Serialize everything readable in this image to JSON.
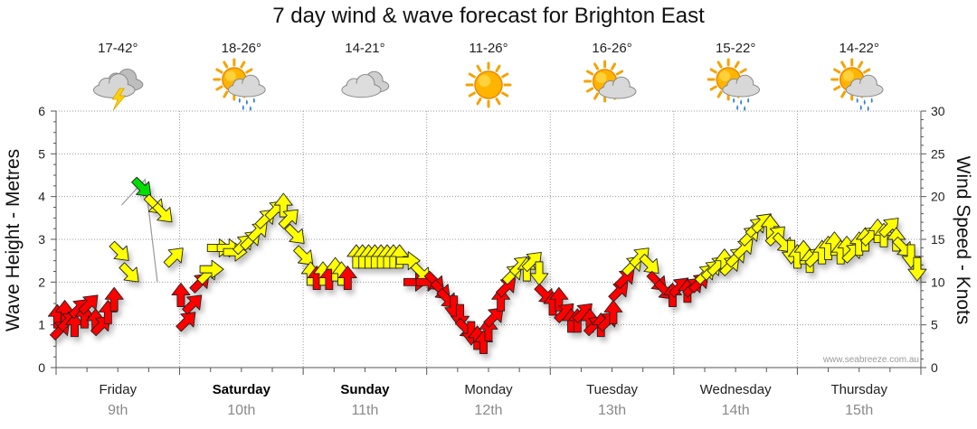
{
  "title": "7 day wind & wave forecast for Brighton East",
  "watermark": "www.seabreeze.com.au",
  "colors": {
    "light": "#ff0000",
    "moderate": "#ffff00",
    "strong": "#00dd00",
    "waveLine": "#999999"
  },
  "chart_data": {
    "type": "line",
    "title": "7 day wind & wave forecast for Brighton East",
    "ylabel_left": "Wave Height - Metres",
    "ylabel_right": "Wind Speed - Knots",
    "ylim_left": [
      0,
      6
    ],
    "ylim_right": [
      0,
      30
    ],
    "yticks_left": [
      "0",
      "1",
      "2",
      "3",
      "4",
      "5",
      "6"
    ],
    "yticks_right": [
      "0",
      "5",
      "10",
      "15",
      "20",
      "25",
      "30"
    ],
    "grid": true,
    "days": [
      {
        "name": "Friday",
        "num": "9th",
        "bold": false,
        "temp": "17-42°",
        "icon": "storm-icon"
      },
      {
        "name": "Saturday",
        "num": "10th",
        "bold": true,
        "temp": "18-26°",
        "icon": "sun-cloud-rain-icon"
      },
      {
        "name": "Sunday",
        "num": "11th",
        "bold": true,
        "temp": "14-21°",
        "icon": "cloud-icon"
      },
      {
        "name": "Monday",
        "num": "12th",
        "bold": false,
        "temp": "11-26°",
        "icon": "sun-icon"
      },
      {
        "name": "Tuesday",
        "num": "13th",
        "bold": false,
        "temp": "16-26°",
        "icon": "sun-cloud-icon"
      },
      {
        "name": "Wednesday",
        "num": "14th",
        "bold": false,
        "temp": "15-22°",
        "icon": "sun-cloud-rain-icon"
      },
      {
        "name": "Thursday",
        "num": "15th",
        "bold": false,
        "temp": "14-22°",
        "icon": "sun-cloud-rain-icon"
      }
    ],
    "wave_series": {
      "name": "Wave Height",
      "x_day": [
        0.53,
        0.72,
        0.82
      ],
      "y": [
        3.8,
        4.4,
        2.0
      ]
    },
    "wind_series": {
      "name": "Wind Speed",
      "points": [
        [
          0.01,
          6.0,
          "N"
        ],
        [
          0.04,
          4.5,
          "NE"
        ],
        [
          0.07,
          6.5,
          "N"
        ],
        [
          0.1,
          5.5,
          "NE"
        ],
        [
          0.15,
          5.0,
          "N"
        ],
        [
          0.19,
          7.0,
          "NE"
        ],
        [
          0.23,
          6.0,
          "N"
        ],
        [
          0.27,
          7.5,
          "NE"
        ],
        [
          0.32,
          5.5,
          "N"
        ],
        [
          0.37,
          5.0,
          "NE"
        ],
        [
          0.42,
          6.5,
          "N"
        ],
        [
          0.47,
          8.0,
          "N"
        ],
        [
          0.52,
          13.5,
          "SE"
        ],
        [
          0.6,
          11.0,
          "SE"
        ],
        [
          0.7,
          21.0,
          "SE"
        ],
        [
          0.8,
          19.0,
          "SE"
        ],
        [
          0.87,
          18.0,
          "SE"
        ],
        [
          0.96,
          13.0,
          "NE"
        ],
        [
          1.01,
          8.5,
          "N"
        ],
        [
          1.06,
          5.5,
          "NE"
        ],
        [
          1.11,
          7.5,
          "NE"
        ],
        [
          1.17,
          10.0,
          "NE"
        ],
        [
          1.23,
          11.0,
          "NE"
        ],
        [
          1.26,
          11.5,
          "E"
        ],
        [
          1.32,
          14.0,
          "E"
        ],
        [
          1.4,
          14.0,
          "E"
        ],
        [
          1.45,
          13.5,
          "E"
        ],
        [
          1.52,
          14.5,
          "NE"
        ],
        [
          1.58,
          15.0,
          "NE"
        ],
        [
          1.64,
          16.0,
          "NE"
        ],
        [
          1.7,
          17.5,
          "NE"
        ],
        [
          1.78,
          18.5,
          "NE"
        ],
        [
          1.84,
          19.0,
          "N"
        ],
        [
          1.89,
          17.5,
          "NE"
        ],
        [
          1.94,
          15.5,
          "SE"
        ],
        [
          2.01,
          13.0,
          "SE"
        ],
        [
          2.06,
          11.0,
          "N"
        ],
        [
          2.11,
          10.5,
          "N"
        ],
        [
          2.16,
          11.0,
          "N"
        ],
        [
          2.21,
          10.5,
          "N"
        ],
        [
          2.26,
          11.5,
          "N"
        ],
        [
          2.31,
          11.0,
          "N"
        ],
        [
          2.36,
          10.5,
          "N"
        ],
        [
          2.43,
          13.0,
          "N"
        ],
        [
          2.48,
          13.0,
          "N"
        ],
        [
          2.53,
          13.0,
          "N"
        ],
        [
          2.58,
          13.0,
          "N"
        ],
        [
          2.63,
          13.0,
          "N"
        ],
        [
          2.68,
          13.0,
          "N"
        ],
        [
          2.73,
          13.0,
          "N"
        ],
        [
          2.78,
          13.0,
          "N"
        ],
        [
          2.85,
          12.5,
          "E"
        ],
        [
          2.91,
          10.0,
          "E"
        ],
        [
          2.96,
          11.0,
          "SE"
        ],
        [
          3.01,
          10.0,
          "E"
        ],
        [
          3.07,
          10.0,
          "SE"
        ],
        [
          3.12,
          9.0,
          "SE"
        ],
        [
          3.17,
          8.0,
          "SE"
        ],
        [
          3.22,
          7.0,
          "S"
        ],
        [
          3.27,
          6.0,
          "S"
        ],
        [
          3.32,
          4.5,
          "SE"
        ],
        [
          3.36,
          4.0,
          "S"
        ],
        [
          3.41,
          3.5,
          "N"
        ],
        [
          3.46,
          3.0,
          "N"
        ],
        [
          3.5,
          4.5,
          "N"
        ],
        [
          3.55,
          6.0,
          "NE"
        ],
        [
          3.6,
          8.0,
          "N"
        ],
        [
          3.65,
          9.5,
          "NE"
        ],
        [
          3.7,
          11.0,
          "NE"
        ],
        [
          3.76,
          12.0,
          "NE"
        ],
        [
          3.81,
          11.5,
          "N"
        ],
        [
          3.86,
          12.5,
          "NE"
        ],
        [
          3.91,
          11.0,
          "S"
        ],
        [
          3.96,
          8.5,
          "SE"
        ],
        [
          4.02,
          7.5,
          "N"
        ],
        [
          4.07,
          8.0,
          "N"
        ],
        [
          4.12,
          6.5,
          "NE"
        ],
        [
          4.17,
          5.5,
          "N"
        ],
        [
          4.22,
          5.5,
          "N"
        ],
        [
          4.27,
          6.5,
          "NE"
        ],
        [
          4.32,
          5.5,
          "N"
        ],
        [
          4.36,
          5.0,
          "NE"
        ],
        [
          4.41,
          5.0,
          "N"
        ],
        [
          4.47,
          5.5,
          "NE"
        ],
        [
          4.51,
          6.5,
          "N"
        ],
        [
          4.56,
          9.0,
          "NE"
        ],
        [
          4.61,
          10.5,
          "NE"
        ],
        [
          4.67,
          12.0,
          "NE"
        ],
        [
          4.73,
          13.0,
          "NE"
        ],
        [
          4.81,
          12.0,
          "SE"
        ],
        [
          4.87,
          10.0,
          "SE"
        ],
        [
          4.93,
          9.0,
          "SE"
        ],
        [
          4.99,
          8.5,
          "N"
        ],
        [
          5.05,
          9.5,
          "NE"
        ],
        [
          5.11,
          9.0,
          "N"
        ],
        [
          5.16,
          9.5,
          "NE"
        ],
        [
          5.21,
          10.0,
          "NE"
        ],
        [
          5.26,
          11.0,
          "NE"
        ],
        [
          5.31,
          11.5,
          "NE"
        ],
        [
          5.36,
          12.0,
          "NE"
        ],
        [
          5.41,
          12.5,
          "N"
        ],
        [
          5.46,
          12.0,
          "NE"
        ],
        [
          5.51,
          13.0,
          "NE"
        ],
        [
          5.57,
          14.0,
          "NE"
        ],
        [
          5.62,
          15.5,
          "NE"
        ],
        [
          5.67,
          16.5,
          "NE"
        ],
        [
          5.72,
          17.0,
          "NE"
        ],
        [
          5.78,
          16.5,
          "N"
        ],
        [
          5.83,
          15.5,
          "NE"
        ],
        [
          5.89,
          14.5,
          "SE"
        ],
        [
          5.95,
          13.5,
          "S"
        ],
        [
          6.0,
          13.0,
          "N"
        ],
        [
          6.05,
          13.5,
          "N"
        ],
        [
          6.1,
          12.5,
          "N"
        ],
        [
          6.15,
          13.0,
          "NE"
        ],
        [
          6.2,
          13.5,
          "N"
        ],
        [
          6.25,
          14.0,
          "N"
        ],
        [
          6.3,
          14.5,
          "N"
        ],
        [
          6.35,
          13.5,
          "N"
        ],
        [
          6.4,
          14.0,
          "N"
        ],
        [
          6.45,
          13.5,
          "NE"
        ],
        [
          6.5,
          14.5,
          "N"
        ],
        [
          6.55,
          15.0,
          "N"
        ],
        [
          6.6,
          15.5,
          "NE"
        ],
        [
          6.65,
          16.0,
          "N"
        ],
        [
          6.7,
          15.5,
          "N"
        ],
        [
          6.75,
          16.5,
          "NE"
        ],
        [
          6.8,
          15.0,
          "N"
        ],
        [
          6.86,
          14.0,
          "SE"
        ],
        [
          6.92,
          13.0,
          "S"
        ],
        [
          6.97,
          11.5,
          "S"
        ]
      ]
    }
  }
}
